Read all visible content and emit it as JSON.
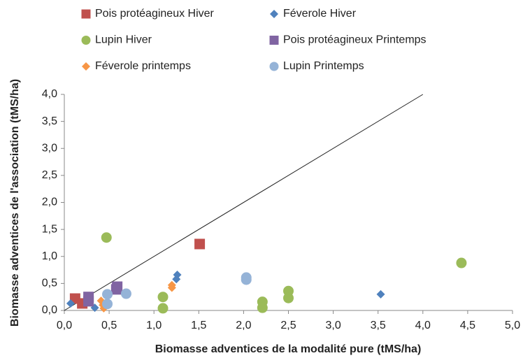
{
  "chart_data": {
    "type": "scatter",
    "xlabel": "Biomasse adventices de la modalité pure (tMS/ha)",
    "ylabel": "Biomasse adventices de l'association (tMS/ha)",
    "xlim": [
      0,
      5
    ],
    "ylim": [
      0,
      4
    ],
    "xticks": [
      {
        "value": 0,
        "label": "0,0"
      },
      {
        "value": 0.5,
        "label": "0,5"
      },
      {
        "value": 1,
        "label": "1,0"
      },
      {
        "value": 1.5,
        "label": "1,5"
      },
      {
        "value": 2,
        "label": "2,0"
      },
      {
        "value": 2.5,
        "label": "2,5"
      },
      {
        "value": 3,
        "label": "3,0"
      },
      {
        "value": 3.5,
        "label": "3,5"
      },
      {
        "value": 4,
        "label": "4,0"
      },
      {
        "value": 4.5,
        "label": "4,5"
      },
      {
        "value": 5,
        "label": "5,0"
      }
    ],
    "yticks": [
      {
        "value": 0,
        "label": "0,0"
      },
      {
        "value": 0.5,
        "label": "0,5"
      },
      {
        "value": 1,
        "label": "1,0"
      },
      {
        "value": 1.5,
        "label": "1,5"
      },
      {
        "value": 2,
        "label": "2,0"
      },
      {
        "value": 2.5,
        "label": "2,5"
      },
      {
        "value": 3,
        "label": "3,0"
      },
      {
        "value": 3.5,
        "label": "3,5"
      },
      {
        "value": 4,
        "label": "4,0"
      }
    ],
    "reference_line": {
      "x": [
        0,
        4
      ],
      "values": [
        0,
        4
      ]
    },
    "series": [
      {
        "name": "Pois protéagineux Hiver",
        "color": "#c0504d",
        "marker": "square",
        "x": [
          0.12,
          0.2,
          1.51
        ],
        "values": [
          0.22,
          0.13,
          1.23
        ]
      },
      {
        "name": "Féverole Hiver",
        "color": "#4f81bd",
        "marker": "diamond",
        "x": [
          0.07,
          0.34,
          1.26,
          1.25,
          3.53
        ],
        "values": [
          0.13,
          0.05,
          0.66,
          0.58,
          0.3
        ]
      },
      {
        "name": "Lupin Hiver",
        "color": "#9bbb59",
        "marker": "circle",
        "x": [
          0.47,
          1.1,
          1.1,
          2.21,
          2.21,
          2.5,
          2.5,
          4.43
        ],
        "values": [
          1.35,
          0.25,
          0.04,
          0.16,
          0.05,
          0.36,
          0.23,
          0.88
        ]
      },
      {
        "name": "Pois protéagineux Printemps",
        "color": "#8064a2",
        "marker": "square",
        "x": [
          0.27,
          0.27,
          0.59,
          0.58
        ],
        "values": [
          0.25,
          0.17,
          0.44,
          0.39
        ]
      },
      {
        "name": "Féverole printemps",
        "color": "#f79646",
        "marker": "diamond",
        "x": [
          0.41,
          0.43,
          0.44,
          1.2,
          1.2
        ],
        "values": [
          0.18,
          0.1,
          0.04,
          0.47,
          0.42
        ]
      },
      {
        "name": "Lupin Printemps",
        "color": "#95b3d7",
        "marker": "circle",
        "x": [
          0.48,
          0.48,
          0.69,
          2.03,
          2.03
        ],
        "values": [
          0.3,
          0.12,
          0.31,
          0.61,
          0.57
        ]
      }
    ]
  }
}
